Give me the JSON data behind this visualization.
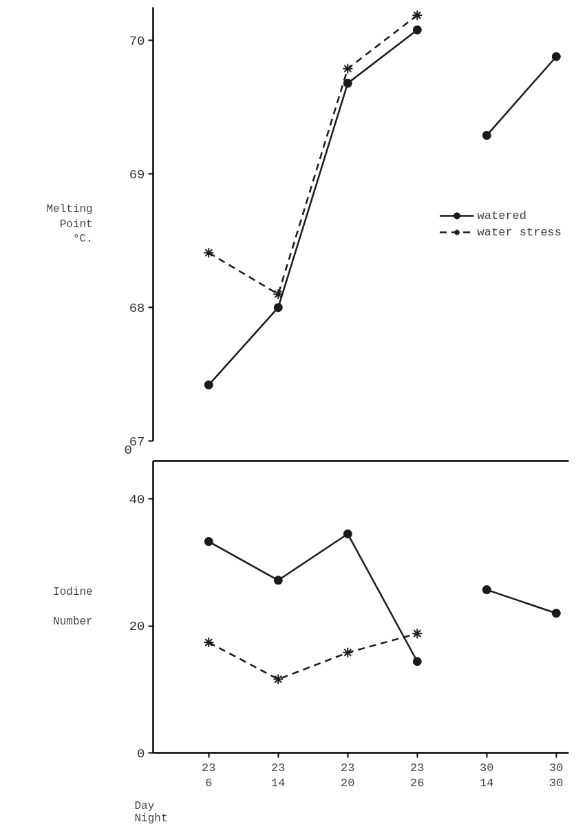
{
  "chart_data": [
    {
      "type": "line",
      "ylabel": "Melting\nPoint\n°C.",
      "ylim": [
        67,
        70.25
      ],
      "yticks": [
        67,
        68,
        69,
        70
      ],
      "tick_labels": "y",
      "legend": "right",
      "annotations": [
        "0"
      ],
      "series": [
        {
          "name": "watered",
          "color": "#1a1a1a",
          "marker": "circle",
          "line_style": "solid",
          "values": [
            67.42,
            68.0,
            69.68,
            70.08,
            null,
            null
          ]
        },
        {
          "color": "#1a1a1a",
          "marker": "circle",
          "line_style": "solid",
          "values": [
            null,
            null,
            null,
            null,
            69.29,
            69.88
          ]
        },
        {
          "name": "water stress",
          "color": "#1a1a1a",
          "marker": "cross",
          "line_style": "dashed",
          "values": [
            68.41,
            68.1,
            69.79,
            70.19,
            null,
            null
          ]
        }
      ]
    },
    {
      "type": "line",
      "ylabel": "Iodine\n\nNumber",
      "xlabel": "Day\nNight",
      "categories": [
        "23\n6",
        "23\n14",
        "23\n20",
        "23\n26",
        "30\n14",
        "30\n30"
      ],
      "ylim": [
        0,
        46
      ],
      "yticks": [
        0,
        20,
        40
      ],
      "series": [
        {
          "color": "#1a1a1a",
          "marker": "circle",
          "line_style": "solid",
          "values": [
            33.3,
            27.2,
            34.5,
            14.4,
            null,
            null
          ]
        },
        {
          "color": "#1a1a1a",
          "marker": "circle",
          "line_style": "solid",
          "values": [
            null,
            null,
            null,
            null,
            25.7,
            22.0
          ]
        },
        {
          "color": "#1a1a1a",
          "marker": "cross",
          "line_style": "dashed",
          "values": [
            17.4,
            11.6,
            15.8,
            18.8,
            null,
            null
          ]
        }
      ]
    }
  ]
}
